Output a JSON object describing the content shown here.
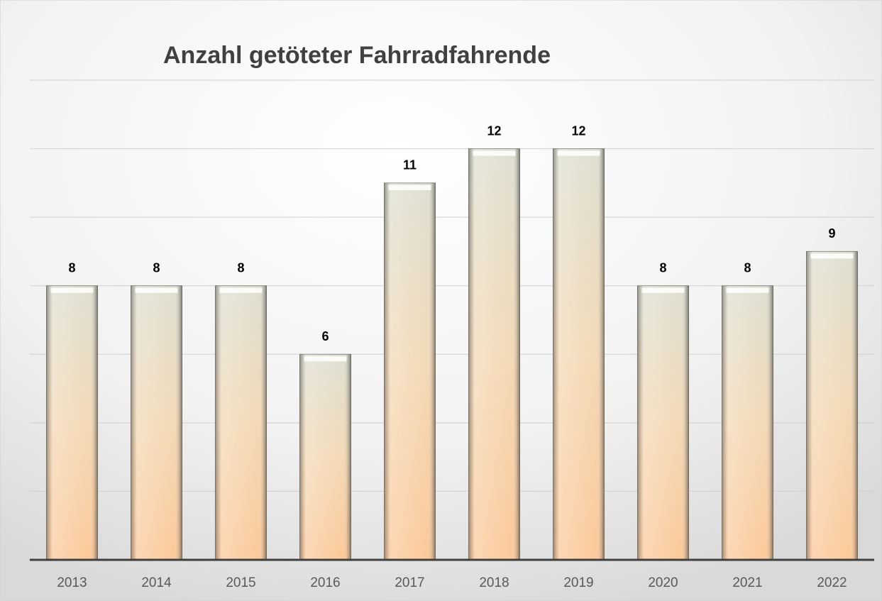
{
  "chart_data": {
    "type": "bar",
    "title": "Anzahl getöteter Fahrradfahrende",
    "categories": [
      "2013",
      "2014",
      "2015",
      "2016",
      "2017",
      "2018",
      "2019",
      "2020",
      "2021",
      "2022"
    ],
    "values": [
      8,
      8,
      8,
      6,
      11,
      12,
      12,
      8,
      8,
      9
    ],
    "ylim": [
      0,
      14
    ],
    "yticks": [
      0,
      2,
      4,
      6,
      8,
      10,
      12,
      14
    ],
    "grid": true
  }
}
